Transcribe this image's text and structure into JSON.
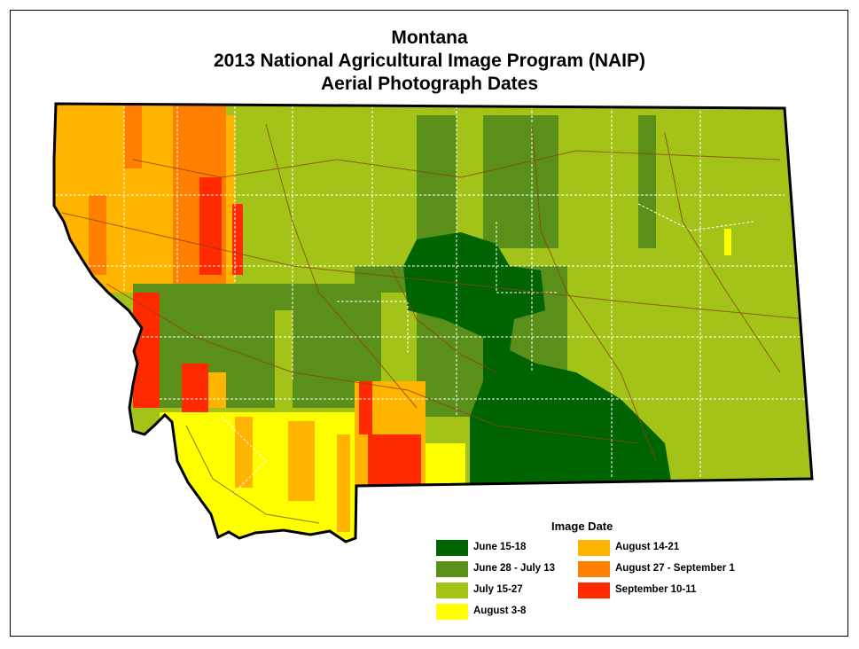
{
  "title": {
    "line1": "Montana",
    "line2": "2013 National Agricultural Image Program (NAIP)",
    "line3": "Aerial Photograph Dates"
  },
  "legend": {
    "title": "Image Date",
    "items": [
      {
        "label": "June 15-18",
        "color": "#006400"
      },
      {
        "label": "June 28 - July 13",
        "color": "#5a8f1a"
      },
      {
        "label": "July 15-27",
        "color": "#a3c318"
      },
      {
        "label": "August 3-8",
        "color": "#ffff00"
      },
      {
        "label": "August 14-21",
        "color": "#ffb400"
      },
      {
        "label": "August 27 - September 1",
        "color": "#ff7f00"
      },
      {
        "label": "September 10-11",
        "color": "#ff2a00"
      }
    ]
  }
}
